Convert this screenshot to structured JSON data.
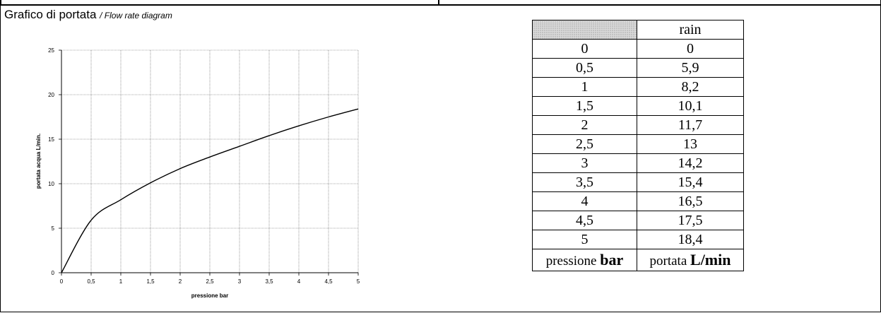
{
  "heading": {
    "title_it": "Grafico di portata",
    "title_en": "/ Flow rate diagram"
  },
  "chart_data": {
    "type": "line",
    "title": "",
    "xlabel": "pressione bar",
    "ylabel": "portata acqua L/min.",
    "xlim": [
      0,
      5
    ],
    "ylim": [
      0,
      25
    ],
    "x_ticks": [
      0,
      0.5,
      1,
      1.5,
      2,
      2.5,
      3,
      3.5,
      4,
      4.5,
      5
    ],
    "x_tick_labels": [
      "0",
      "0,5",
      "1",
      "1,5",
      "2",
      "2,5",
      "3",
      "3,5",
      "4",
      "4,5",
      "5"
    ],
    "y_ticks": [
      0,
      5,
      10,
      15,
      20,
      25
    ],
    "y_tick_labels": [
      "0",
      "5",
      "10",
      "15",
      "20",
      "25"
    ],
    "grid": true,
    "series": [
      {
        "x": [
          0,
          0.5,
          1,
          1.5,
          2,
          2.5,
          3,
          3.5,
          4,
          4.5,
          5
        ],
        "values": [
          0,
          5.9,
          8.2,
          10.1,
          11.7,
          13,
          14.2,
          15.4,
          16.5,
          17.5,
          18.4
        ]
      }
    ]
  },
  "table": {
    "header": [
      "",
      "rain"
    ],
    "rows": [
      [
        "0",
        "0"
      ],
      [
        "0,5",
        "5,9"
      ],
      [
        "1",
        "8,2"
      ],
      [
        "1,5",
        "10,1"
      ],
      [
        "2",
        "11,7"
      ],
      [
        "2,5",
        "13"
      ],
      [
        "3",
        "14,2"
      ],
      [
        "3,5",
        "15,4"
      ],
      [
        "4",
        "16,5"
      ],
      [
        "4,5",
        "17,5"
      ],
      [
        "5",
        "18,4"
      ]
    ],
    "footer": {
      "col1_text": "pressione",
      "col1_unit": "bar",
      "col2_text": "portata",
      "col2_unit": "L/min"
    }
  }
}
